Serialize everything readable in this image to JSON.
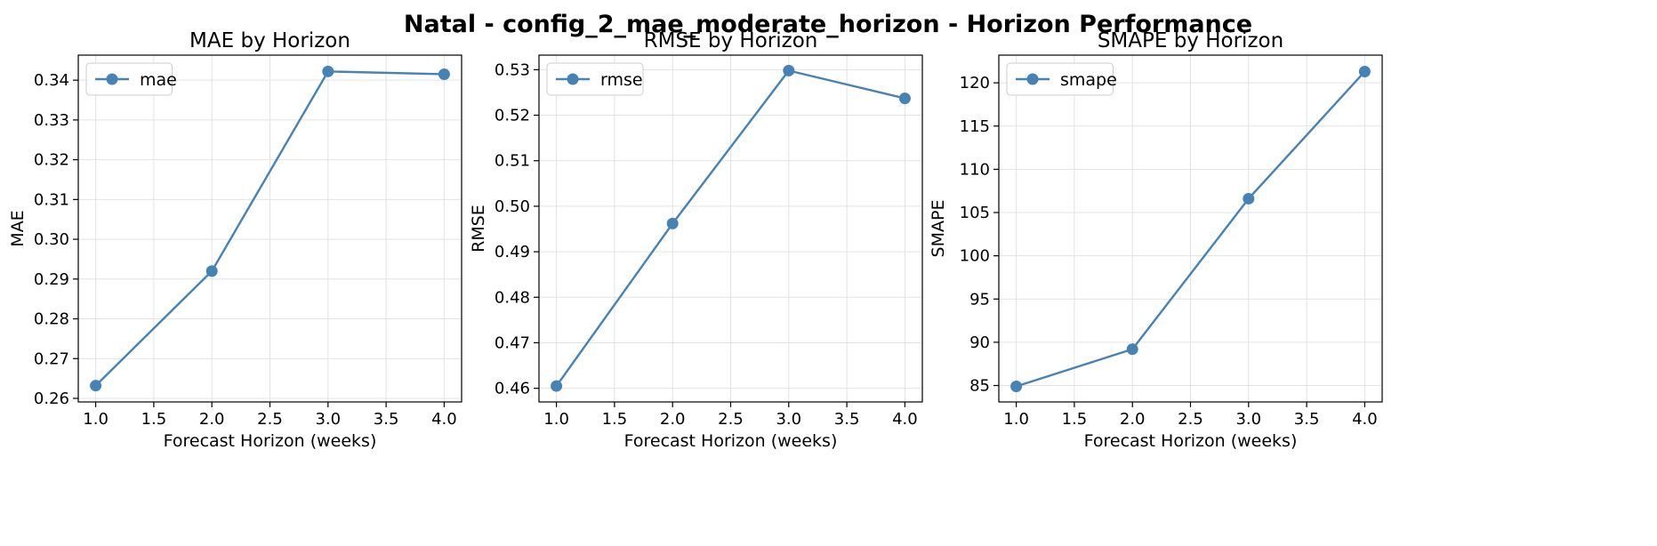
{
  "figure": {
    "suptitle": "Natal - config_2_mae_moderate_horizon - Horizon Performance"
  },
  "chart_data": [
    {
      "type": "line",
      "title": "MAE by Horizon",
      "xlabel": "Forecast Horizon (weeks)",
      "ylabel": "MAE",
      "x": [
        1.0,
        2.0,
        3.0,
        4.0
      ],
      "series": [
        {
          "name": "mae",
          "values": [
            0.2632,
            0.292,
            0.3422,
            0.3415
          ]
        }
      ],
      "xlim": [
        0.85,
        4.15
      ],
      "ylim": [
        0.2591,
        0.3463
      ],
      "xticks": [
        1.0,
        1.5,
        2.0,
        2.5,
        3.0,
        3.5,
        4.0
      ],
      "xtick_labels": [
        "1.0",
        "1.5",
        "2.0",
        "2.5",
        "3.0",
        "3.5",
        "4.0"
      ],
      "yticks": [
        0.26,
        0.27,
        0.28,
        0.29,
        0.3,
        0.31,
        0.32,
        0.33,
        0.34
      ],
      "ytick_labels": [
        "0.26",
        "0.27",
        "0.28",
        "0.29",
        "0.30",
        "0.31",
        "0.32",
        "0.33",
        "0.34"
      ],
      "grid": true,
      "legend": "upper-left",
      "color": "#4682b4"
    },
    {
      "type": "line",
      "title": "RMSE by Horizon",
      "xlabel": "Forecast Horizon (weeks)",
      "ylabel": "RMSE",
      "x": [
        1.0,
        2.0,
        3.0,
        4.0
      ],
      "series": [
        {
          "name": "rmse",
          "values": [
            0.4605,
            0.4962,
            0.5298,
            0.5237
          ]
        }
      ],
      "xlim": [
        0.85,
        4.15
      ],
      "ylim": [
        0.457,
        0.5332
      ],
      "xticks": [
        1.0,
        1.5,
        2.0,
        2.5,
        3.0,
        3.5,
        4.0
      ],
      "xtick_labels": [
        "1.0",
        "1.5",
        "2.0",
        "2.5",
        "3.0",
        "3.5",
        "4.0"
      ],
      "yticks": [
        0.46,
        0.47,
        0.48,
        0.49,
        0.5,
        0.51,
        0.52,
        0.53
      ],
      "ytick_labels": [
        "0.46",
        "0.47",
        "0.48",
        "0.49",
        "0.50",
        "0.51",
        "0.52",
        "0.53"
      ],
      "grid": true,
      "legend": "upper-left",
      "color": "#4682b4"
    },
    {
      "type": "line",
      "title": "SMAPE by Horizon",
      "xlabel": "Forecast Horizon (weeks)",
      "ylabel": "SMAPE",
      "x": [
        1.0,
        2.0,
        3.0,
        4.0
      ],
      "series": [
        {
          "name": "smape",
          "values": [
            84.9,
            89.2,
            106.6,
            121.3
          ]
        }
      ],
      "xlim": [
        0.85,
        4.15
      ],
      "ylim": [
        83.1,
        123.2
      ],
      "xticks": [
        1.0,
        1.5,
        2.0,
        2.5,
        3.0,
        3.5,
        4.0
      ],
      "xtick_labels": [
        "1.0",
        "1.5",
        "2.0",
        "2.5",
        "3.0",
        "3.5",
        "4.0"
      ],
      "yticks": [
        85,
        90,
        95,
        100,
        105,
        110,
        115,
        120
      ],
      "ytick_labels": [
        "85",
        "90",
        "95",
        "100",
        "105",
        "110",
        "115",
        "120"
      ],
      "grid": true,
      "legend": "upper-left",
      "color": "#4682b4"
    }
  ]
}
